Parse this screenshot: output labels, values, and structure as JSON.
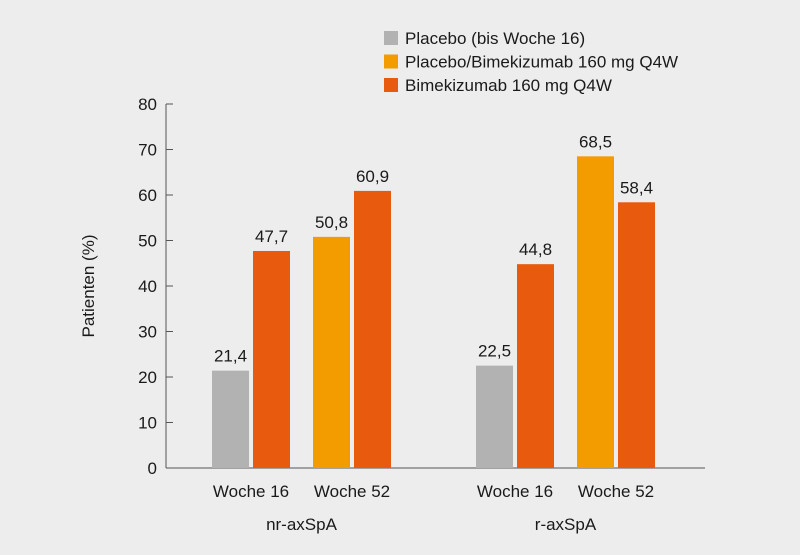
{
  "chart_data": {
    "type": "bar",
    "ylabel": "Patienten (%)",
    "ylim": [
      0,
      80
    ],
    "yticks": [
      0,
      10,
      20,
      30,
      40,
      50,
      60,
      70,
      80
    ],
    "legend_placement": "top-right",
    "legend": [
      {
        "name": "Placebo (bis Woche 16)",
        "color": "#b2b2b2"
      },
      {
        "name": "Placebo/Bimekizumab 160 mg Q4W",
        "color": "#f39c00"
      },
      {
        "name": "Bimekizumab 160 mg Q4W",
        "color": "#e85b0e"
      }
    ],
    "groups": [
      {
        "label": "nr-axSpA",
        "subgroups": [
          {
            "label": "Woche 16",
            "bars": [
              {
                "series": 0,
                "value": 21.4,
                "label": "21,4"
              },
              {
                "series": 2,
                "value": 47.7,
                "label": "47,7"
              }
            ]
          },
          {
            "label": "Woche 52",
            "bars": [
              {
                "series": 1,
                "value": 50.8,
                "label": "50,8"
              },
              {
                "series": 2,
                "value": 60.9,
                "label": "60,9"
              }
            ]
          }
        ]
      },
      {
        "label": "r-axSpA",
        "subgroups": [
          {
            "label": "Woche 16",
            "bars": [
              {
                "series": 0,
                "value": 22.5,
                "label": "22,5"
              },
              {
                "series": 2,
                "value": 44.8,
                "label": "44,8"
              }
            ]
          },
          {
            "label": "Woche 52",
            "bars": [
              {
                "series": 1,
                "value": 68.5,
                "label": "68,5"
              },
              {
                "series": 2,
                "value": 58.4,
                "label": "58,4"
              }
            ]
          }
        ]
      }
    ]
  }
}
